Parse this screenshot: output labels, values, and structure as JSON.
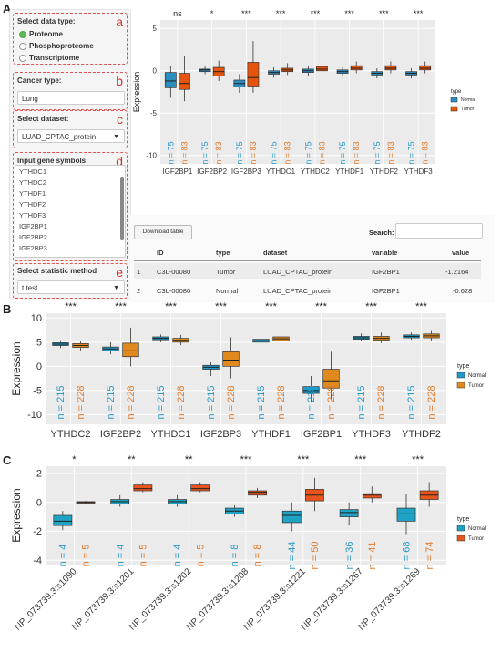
{
  "panel_letters": [
    "A",
    "B",
    "C"
  ],
  "sidebar": {
    "data_type": {
      "label": "Select data type:",
      "tag": "a",
      "options": [
        "Proteome",
        "Phosphoproteome",
        "Transcriptome"
      ],
      "selected": "Proteome"
    },
    "cancer_type": {
      "label": "Cancer type:",
      "tag": "b",
      "value": "Lung"
    },
    "dataset": {
      "label": "Select dataset:",
      "tag": "c",
      "value": "LUAD_CPTAC_protein"
    },
    "genes": {
      "label": "Input gene symbols:",
      "tag": "d",
      "items": [
        "YTHDC1",
        "YTHDC2",
        "YTHDF1",
        "YTHDF2",
        "YTHDF3",
        "IGF2BP1",
        "IGF2BP2",
        "IGF2BP3"
      ]
    },
    "method": {
      "label": "Select statistic method",
      "tag": "e",
      "value": "t.test"
    }
  },
  "table": {
    "download_label": "Download table",
    "search_label": "Search:",
    "columns": [
      "",
      "ID",
      "type",
      "dataset",
      "variable",
      "value"
    ],
    "rows": [
      [
        "1",
        "C3L-00080",
        "Tumor",
        "LUAD_CPTAC_protein",
        "IGF2BP1",
        "-1.2164"
      ],
      [
        "2",
        "C3L-00080",
        "Normal",
        "LUAD_CPTAC_protein",
        "IGF2BP1",
        "-0.628"
      ]
    ]
  },
  "colors": {
    "normal_A": "#2b8cbe",
    "tumor_A": "#e6550d",
    "normal_B": "#1f9ac9",
    "tumor_B": "#e08a1e",
    "normal_C": "#1fa3c4",
    "tumor_C": "#e8541e",
    "n_normal": "#2b9ac9",
    "n_tumor": "#e07a2a"
  },
  "chart_data": [
    {
      "type": "box",
      "ylabel": "Expression",
      "ylim": [
        -11,
        6
      ],
      "yticks": [
        -10,
        -5,
        0,
        5
      ],
      "categories": [
        "IGF2BP1",
        "IGF2BP2",
        "IGF2BP3",
        "YTHDC1",
        "YTHDC2",
        "YTHDF1",
        "YTHDF2",
        "YTHDF3"
      ],
      "significance": [
        "ns",
        "*",
        "***",
        "***",
        "***",
        "***",
        "***",
        "***"
      ],
      "legend": {
        "title": "type",
        "items": [
          "Normal",
          "Tumor"
        ],
        "position": "right"
      },
      "series": [
        {
          "name": "Normal",
          "n": [
            "75",
            "75",
            "75",
            "75",
            "75",
            "75",
            "75",
            "75"
          ],
          "boxes": [
            [
              -3.2,
              -2.0,
              -1.2,
              -0.2,
              0.6
            ],
            [
              -0.4,
              -0.1,
              0.1,
              0.2,
              0.5
            ],
            [
              -2.6,
              -1.9,
              -1.5,
              -1.1,
              -0.4
            ],
            [
              -0.8,
              -0.4,
              -0.2,
              0.0,
              0.4
            ],
            [
              -0.6,
              -0.2,
              0.0,
              0.2,
              0.6
            ],
            [
              -0.7,
              -0.3,
              -0.1,
              0.1,
              0.4
            ],
            [
              -0.9,
              -0.5,
              -0.3,
              -0.1,
              0.3
            ],
            [
              -0.9,
              -0.5,
              -0.3,
              -0.1,
              0.3
            ]
          ]
        },
        {
          "name": "Tumor",
          "n": [
            "83",
            "83",
            "83",
            "83",
            "83",
            "83",
            "83",
            "83"
          ],
          "boxes": [
            [
              -3.6,
              -2.2,
              -1.5,
              -0.3,
              1.8
            ],
            [
              -1.2,
              -0.6,
              -0.1,
              0.4,
              1.2
            ],
            [
              -2.6,
              -1.8,
              -0.8,
              1.0,
              3.5
            ],
            [
              -0.5,
              -0.1,
              0.1,
              0.3,
              0.9
            ],
            [
              -0.4,
              0.0,
              0.2,
              0.5,
              1.0
            ],
            [
              -0.3,
              0.1,
              0.3,
              0.6,
              1.1
            ],
            [
              -0.3,
              0.1,
              0.3,
              0.6,
              1.1
            ],
            [
              -0.3,
              0.1,
              0.3,
              0.6,
              1.1
            ]
          ]
        }
      ]
    },
    {
      "type": "box",
      "ylabel": "Expression",
      "ylim": [
        -12,
        11
      ],
      "yticks": [
        -10,
        -5,
        0,
        5,
        10
      ],
      "categories": [
        "YTHDC2",
        "IGF2BP2",
        "YTHDC1",
        "IGF2BP3",
        "YTHDF1",
        "IGF2BP1",
        "YTHDF3",
        "YTHDF2"
      ],
      "significance": [
        "***",
        "***",
        "***",
        "***",
        "***",
        "***",
        "***",
        "***"
      ],
      "legend": {
        "title": "type",
        "items": [
          "Normal",
          "Tumor"
        ],
        "position": "right"
      },
      "series": [
        {
          "name": "Normal",
          "n": [
            "215",
            "215",
            "215",
            "215",
            "215",
            "215",
            "215",
            "215"
          ],
          "boxes": [
            [
              3.8,
              4.3,
              4.6,
              4.9,
              5.4
            ],
            [
              2.5,
              3.2,
              3.6,
              4.0,
              5.0
            ],
            [
              5.0,
              5.5,
              5.8,
              6.1,
              6.6
            ],
            [
              -2.0,
              -0.6,
              -0.2,
              0.2,
              1.0
            ],
            [
              4.6,
              5.0,
              5.3,
              5.6,
              6.2
            ],
            [
              -7.5,
              -5.6,
              -5.0,
              -4.2,
              -2.0
            ],
            [
              5.2,
              5.6,
              5.9,
              6.2,
              6.8
            ],
            [
              5.5,
              5.9,
              6.2,
              6.5,
              7.0
            ]
          ]
        },
        {
          "name": "Tumor",
          "n": [
            "228",
            "228",
            "228",
            "228",
            "228",
            "228",
            "228",
            "228"
          ],
          "boxes": [
            [
              3.3,
              3.9,
              4.3,
              4.7,
              5.3
            ],
            [
              0.0,
              2.0,
              3.2,
              4.8,
              8.0
            ],
            [
              4.4,
              5.0,
              5.4,
              5.8,
              6.5
            ],
            [
              -2.5,
              0.0,
              1.3,
              3.0,
              6.0
            ],
            [
              4.7,
              5.3,
              5.7,
              6.1,
              6.9
            ],
            [
              -7.0,
              -4.5,
              -3.0,
              -0.6,
              3.0
            ],
            [
              4.8,
              5.4,
              5.8,
              6.2,
              7.0
            ],
            [
              5.3,
              5.9,
              6.3,
              6.7,
              7.5
            ]
          ]
        }
      ]
    },
    {
      "type": "box",
      "ylabel": "Expression",
      "ylim": [
        -4.3,
        2.5
      ],
      "yticks": [
        -4,
        -2,
        0,
        2
      ],
      "categories": [
        "NP_073739.3:s1090",
        "NP_073739.3:s1201",
        "NP_073739.3:s1202",
        "NP_073739.3:s1208",
        "NP_073739.3:s1221",
        "NP_073739.3:s1267",
        "NP_073739.3:s1269"
      ],
      "significance": [
        "*",
        "**",
        "**",
        "***",
        "***",
        "***",
        "***"
      ],
      "legend": {
        "title": "type",
        "items": [
          "Normal",
          "Tumor"
        ],
        "position": "right"
      },
      "series": [
        {
          "name": "Normal",
          "n": [
            "4",
            "4",
            "4",
            "8",
            "44",
            "36",
            "68"
          ],
          "boxes": [
            [
              -1.9,
              -1.6,
              -1.3,
              -0.9,
              -0.6
            ],
            [
              -0.3,
              -0.1,
              0.05,
              0.2,
              0.5
            ],
            [
              -0.3,
              -0.1,
              0.05,
              0.2,
              0.5
            ],
            [
              -1.0,
              -0.8,
              -0.6,
              -0.4,
              -0.2
            ],
            [
              -2.0,
              -1.4,
              -0.9,
              -0.6,
              0.0
            ],
            [
              -1.6,
              -1.0,
              -0.7,
              -0.5,
              0.0
            ],
            [
              -2.2,
              -1.3,
              -0.8,
              -0.4,
              0.6
            ]
          ]
        },
        {
          "name": "Tumor",
          "n": [
            "5",
            "5",
            "5",
            "8",
            "50",
            "41",
            "74"
          ],
          "boxes": [
            [
              -0.1,
              -0.05,
              0.0,
              0.05,
              0.1
            ],
            [
              0.7,
              0.8,
              0.95,
              1.2,
              1.4
            ],
            [
              0.7,
              0.8,
              0.95,
              1.2,
              1.4
            ],
            [
              0.3,
              0.5,
              0.7,
              0.8,
              1.0
            ],
            [
              -0.6,
              0.1,
              0.5,
              0.9,
              1.7
            ],
            [
              0.0,
              0.3,
              0.5,
              0.6,
              1.1
            ],
            [
              -0.3,
              0.2,
              0.5,
              0.8,
              1.4
            ]
          ]
        }
      ]
    }
  ]
}
